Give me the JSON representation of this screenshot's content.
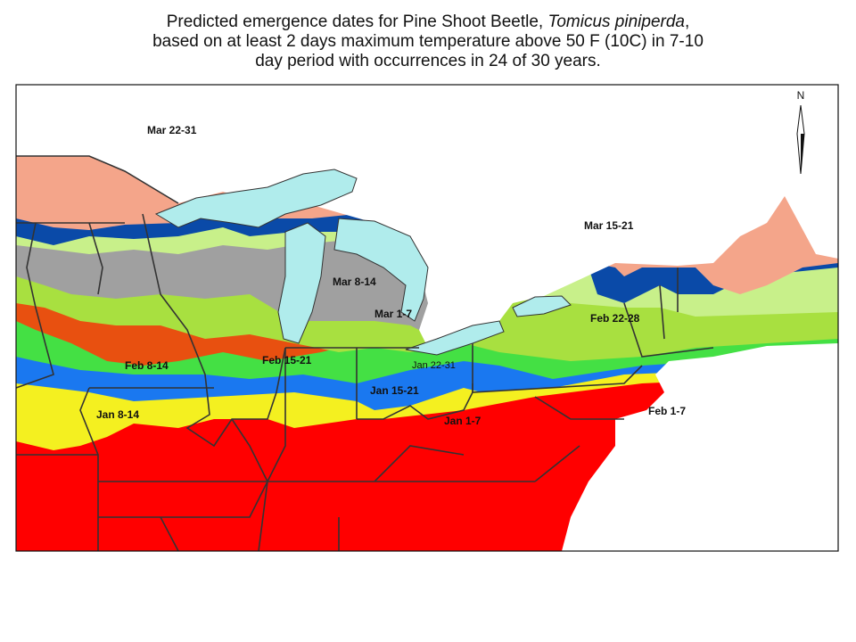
{
  "title": {
    "line1": "Predicted emergence dates for Pine Shoot Beetle,",
    "species": "Tomicus piniperda",
    "line1_end": ",",
    "line2": "based on at least 2 days maximum temperature above 50 F (10C) in 7-10",
    "line3": "day period with occurrences in 24 of 30 years."
  },
  "compass": "N",
  "labels": [
    "Mar 22-31",
    "Mar 15-21",
    "Mar 8-14",
    "Mar 1-7",
    "Feb 22-28",
    "Feb 15-21",
    "Feb 8-14",
    "Jan 22-31",
    "Jan 15-21",
    "Jan 8-14",
    "Jan 1-7",
    "Feb 1-7"
  ]
}
